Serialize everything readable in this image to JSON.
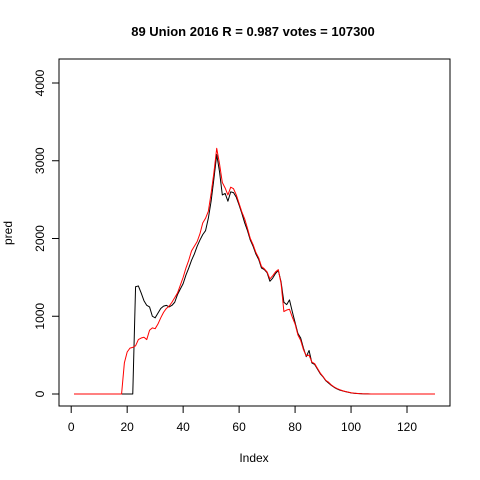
{
  "chart_data": {
    "type": "line",
    "title": "89 Union 2016 R = 0.987 votes = 107300",
    "xlabel": "Index",
    "ylabel": "pred",
    "xlim": [
      1,
      130
    ],
    "ylim": [
      0,
      4200
    ],
    "x_ticks": [
      0,
      20,
      40,
      60,
      80,
      100,
      120
    ],
    "y_ticks": [
      0,
      1000,
      2000,
      3000,
      4000
    ],
    "grid": false,
    "legend": "none",
    "series": [
      {
        "color": "#000000",
        "points": [
          [
            1,
            0
          ],
          [
            22,
            0
          ],
          [
            23,
            1380
          ],
          [
            24,
            1390
          ],
          [
            25,
            1300
          ],
          [
            26,
            1200
          ],
          [
            27,
            1140
          ],
          [
            28,
            1120
          ],
          [
            29,
            1000
          ],
          [
            30,
            980
          ],
          [
            31,
            1040
          ],
          [
            32,
            1100
          ],
          [
            33,
            1130
          ],
          [
            34,
            1140
          ],
          [
            35,
            1120
          ],
          [
            36,
            1140
          ],
          [
            37,
            1180
          ],
          [
            38,
            1280
          ],
          [
            39,
            1350
          ],
          [
            40,
            1420
          ],
          [
            41,
            1530
          ],
          [
            42,
            1620
          ],
          [
            43,
            1720
          ],
          [
            44,
            1800
          ],
          [
            45,
            1900
          ],
          [
            46,
            1980
          ],
          [
            47,
            2050
          ],
          [
            48,
            2100
          ],
          [
            49,
            2260
          ],
          [
            50,
            2480
          ],
          [
            51,
            2770
          ],
          [
            52,
            3080
          ],
          [
            53,
            2860
          ],
          [
            54,
            2560
          ],
          [
            55,
            2580
          ],
          [
            56,
            2480
          ],
          [
            57,
            2600
          ],
          [
            58,
            2590
          ],
          [
            59,
            2530
          ],
          [
            60,
            2430
          ],
          [
            61,
            2320
          ],
          [
            62,
            2200
          ],
          [
            63,
            2100
          ],
          [
            64,
            1980
          ],
          [
            65,
            1900
          ],
          [
            66,
            1800
          ],
          [
            67,
            1730
          ],
          [
            68,
            1620
          ],
          [
            69,
            1600
          ],
          [
            70,
            1560
          ],
          [
            71,
            1450
          ],
          [
            72,
            1490
          ],
          [
            73,
            1550
          ],
          [
            74,
            1590
          ],
          [
            75,
            1440
          ],
          [
            76,
            1180
          ],
          [
            77,
            1150
          ],
          [
            78,
            1210
          ],
          [
            79,
            1060
          ],
          [
            80,
            920
          ],
          [
            81,
            780
          ],
          [
            82,
            720
          ],
          [
            83,
            590
          ],
          [
            84,
            480
          ],
          [
            85,
            560
          ],
          [
            86,
            400
          ],
          [
            87,
            380
          ],
          [
            88,
            320
          ],
          [
            89,
            260
          ],
          [
            90,
            220
          ],
          [
            91,
            170
          ],
          [
            92,
            140
          ],
          [
            93,
            110
          ],
          [
            94,
            85
          ],
          [
            95,
            65
          ],
          [
            96,
            50
          ],
          [
            97,
            40
          ],
          [
            98,
            30
          ],
          [
            99,
            22
          ],
          [
            100,
            15
          ],
          [
            101,
            10
          ],
          [
            102,
            7
          ],
          [
            103,
            5
          ],
          [
            104,
            3
          ],
          [
            105,
            2
          ],
          [
            106,
            1
          ],
          [
            107,
            0
          ],
          [
            130,
            0
          ]
        ]
      },
      {
        "color": "#ff0000",
        "points": [
          [
            1,
            0
          ],
          [
            18,
            0
          ],
          [
            19,
            400
          ],
          [
            20,
            540
          ],
          [
            21,
            590
          ],
          [
            22,
            600
          ],
          [
            23,
            620
          ],
          [
            24,
            700
          ],
          [
            25,
            720
          ],
          [
            26,
            730
          ],
          [
            27,
            700
          ],
          [
            28,
            820
          ],
          [
            29,
            850
          ],
          [
            30,
            840
          ],
          [
            31,
            900
          ],
          [
            32,
            980
          ],
          [
            33,
            1050
          ],
          [
            34,
            1100
          ],
          [
            35,
            1130
          ],
          [
            36,
            1180
          ],
          [
            37,
            1240
          ],
          [
            38,
            1300
          ],
          [
            39,
            1400
          ],
          [
            40,
            1500
          ],
          [
            41,
            1620
          ],
          [
            42,
            1720
          ],
          [
            43,
            1840
          ],
          [
            44,
            1900
          ],
          [
            45,
            1960
          ],
          [
            46,
            2060
          ],
          [
            47,
            2200
          ],
          [
            48,
            2260
          ],
          [
            49,
            2350
          ],
          [
            50,
            2580
          ],
          [
            51,
            2850
          ],
          [
            52,
            3160
          ],
          [
            53,
            2960
          ],
          [
            54,
            2720
          ],
          [
            55,
            2650
          ],
          [
            56,
            2560
          ],
          [
            57,
            2660
          ],
          [
            58,
            2640
          ],
          [
            59,
            2560
          ],
          [
            60,
            2450
          ],
          [
            61,
            2340
          ],
          [
            62,
            2250
          ],
          [
            63,
            2130
          ],
          [
            64,
            2000
          ],
          [
            65,
            1920
          ],
          [
            66,
            1820
          ],
          [
            67,
            1750
          ],
          [
            68,
            1640
          ],
          [
            69,
            1610
          ],
          [
            70,
            1570
          ],
          [
            71,
            1480
          ],
          [
            72,
            1520
          ],
          [
            73,
            1570
          ],
          [
            74,
            1600
          ],
          [
            75,
            1420
          ],
          [
            76,
            1060
          ],
          [
            77,
            1080
          ],
          [
            78,
            1090
          ],
          [
            79,
            990
          ],
          [
            80,
            900
          ],
          [
            81,
            760
          ],
          [
            82,
            690
          ],
          [
            83,
            570
          ],
          [
            84,
            490
          ],
          [
            85,
            500
          ],
          [
            86,
            410
          ],
          [
            87,
            390
          ],
          [
            88,
            330
          ],
          [
            89,
            270
          ],
          [
            90,
            225
          ],
          [
            91,
            175
          ],
          [
            92,
            150
          ],
          [
            93,
            115
          ],
          [
            94,
            90
          ],
          [
            95,
            70
          ],
          [
            96,
            55
          ],
          [
            97,
            42
          ],
          [
            98,
            32
          ],
          [
            99,
            24
          ],
          [
            100,
            16
          ],
          [
            101,
            11
          ],
          [
            102,
            8
          ],
          [
            103,
            5
          ],
          [
            104,
            3
          ],
          [
            105,
            2
          ],
          [
            106,
            1
          ],
          [
            107,
            0
          ],
          [
            130,
            0
          ]
        ]
      }
    ]
  }
}
